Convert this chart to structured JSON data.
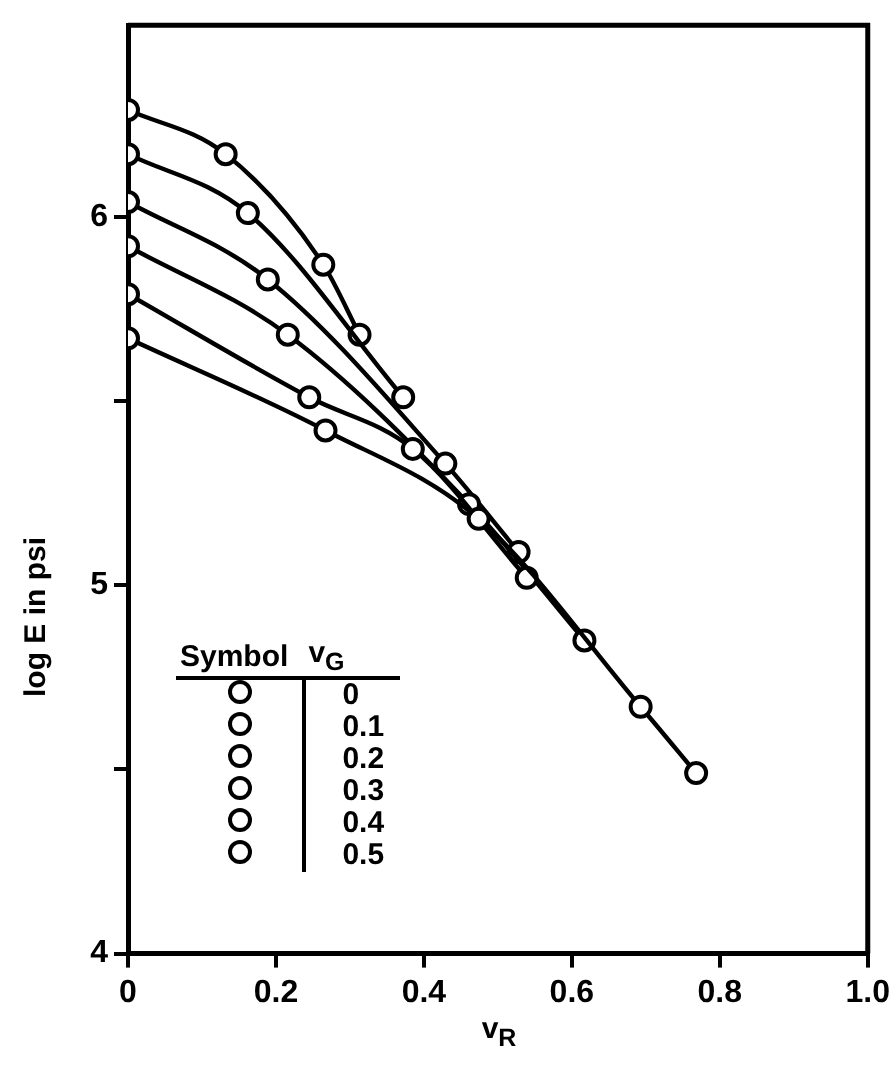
{
  "chart_data": {
    "type": "line",
    "xlabel": "v$_{R}$",
    "ylabel": "log E in psi",
    "legend_title": "v$_{G}$",
    "annotations": [
      "Symbol"
    ],
    "xlim": [
      0,
      1.0
    ],
    "xticks": [
      0,
      0.2,
      0.4,
      0.6,
      0.8,
      {
        "value": 1.0,
        "label": "1.0"
      }
    ],
    "ylim": [
      4,
      6.52
    ],
    "yticks": [
      4,
      {
        "value": 4.5,
        "label": null
      },
      5,
      {
        "value": 5.5,
        "label": null
      },
      6
    ],
    "grid": false,
    "legend": "bottom left",
    "marker": "circle",
    "line_style": "solid",
    "series": [
      {
        "name": "0",
        "color": "#000000",
        "x": [
          0,
          0.267,
          0.474,
          0.693,
          0.768
        ],
        "values": [
          5.67,
          5.42,
          5.18,
          4.67,
          4.49
        ]
      },
      {
        "name": "0.1",
        "color": "#000000",
        "x": [
          0,
          0.245,
          0.385,
          0.539
        ],
        "values": [
          5.79,
          5.51,
          5.37,
          5.02
        ]
      },
      {
        "name": "0.2",
        "color": "#000000",
        "x": [
          0,
          0.216,
          0.461,
          0.617
        ],
        "values": [
          5.92,
          5.68,
          5.22,
          4.85
        ]
      },
      {
        "name": "0.3",
        "color": "#000000",
        "x": [
          0,
          0.189,
          0.429,
          0.528
        ],
        "values": [
          6.04,
          5.83,
          5.33,
          5.09
        ]
      },
      {
        "name": "0.4",
        "color": "#000000",
        "x": [
          0,
          0.162,
          0.372
        ],
        "values": [
          6.17,
          6.01,
          5.51
        ]
      },
      {
        "name": "0.5",
        "color": "#000000",
        "x": [
          0,
          0.132,
          0.264,
          0.313
        ],
        "values": [
          6.29,
          6.17,
          5.87,
          5.68
        ]
      }
    ]
  }
}
